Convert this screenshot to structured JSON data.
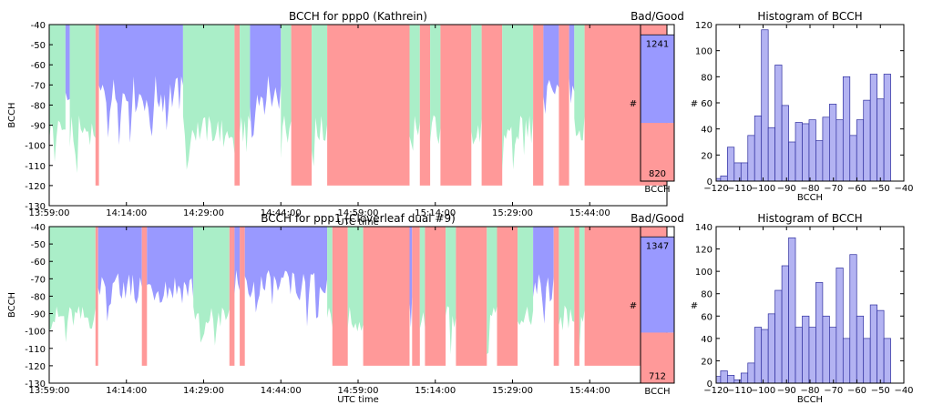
{
  "colors": {
    "bad": "#ff9999",
    "good": "#9999ff",
    "fill_green": "#aaeec8",
    "hist_fill": "#b3b3f2",
    "hist_edge": "#2f2f9f"
  },
  "chart_data": [
    {
      "type": "area",
      "title": "BCCH for ppp0 (Kathrein)",
      "xlabel": "UTC time",
      "ylabel": "BCCH",
      "ylim": [
        -130,
        -40
      ],
      "yticks": [
        -130,
        -120,
        -110,
        -100,
        -90,
        -80,
        -70,
        -60,
        -50,
        -40
      ],
      "xtick_labels": [
        "13:59:00",
        "14:14:00",
        "14:29:00",
        "14:44:00",
        "14:59:00",
        "15:14:00",
        "15:29:00",
        "15:44:00"
      ],
      "x_time_range": [
        "13:59:00",
        "15:59:00"
      ],
      "grid": false,
      "segments": [
        {
          "status": "green",
          "from": "13:59:00",
          "to": "14:02:10"
        },
        {
          "status": "good",
          "from": "14:02:10",
          "to": "14:03:00"
        },
        {
          "status": "green",
          "from": "14:03:00",
          "to": "14:08:00"
        },
        {
          "status": "bad",
          "from": "14:08:00",
          "to": "14:08:40"
        },
        {
          "status": "good",
          "from": "14:08:40",
          "to": "14:25:00"
        },
        {
          "status": "green",
          "from": "14:25:00",
          "to": "14:35:00"
        },
        {
          "status": "bad",
          "from": "14:35:00",
          "to": "14:36:00"
        },
        {
          "status": "green",
          "from": "14:36:00",
          "to": "14:38:00"
        },
        {
          "status": "good",
          "from": "14:38:00",
          "to": "14:44:00"
        },
        {
          "status": "green",
          "from": "14:44:00",
          "to": "14:46:00"
        },
        {
          "status": "bad",
          "from": "14:46:00",
          "to": "14:50:00"
        },
        {
          "status": "green",
          "from": "14:50:00",
          "to": "14:53:00"
        },
        {
          "status": "bad",
          "from": "14:53:00",
          "to": "15:09:00"
        },
        {
          "status": "green",
          "from": "15:09:00",
          "to": "15:11:00"
        },
        {
          "status": "bad",
          "from": "15:11:00",
          "to": "15:13:00"
        },
        {
          "status": "green",
          "from": "15:13:00",
          "to": "15:15:00"
        },
        {
          "status": "bad",
          "from": "15:15:00",
          "to": "15:21:00"
        },
        {
          "status": "green",
          "from": "15:21:00",
          "to": "15:23:00"
        },
        {
          "status": "bad",
          "from": "15:23:00",
          "to": "15:27:00"
        },
        {
          "status": "green",
          "from": "15:27:00",
          "to": "15:33:00"
        },
        {
          "status": "bad",
          "from": "15:33:00",
          "to": "15:35:00"
        },
        {
          "status": "good",
          "from": "15:35:00",
          "to": "15:38:00"
        },
        {
          "status": "bad",
          "from": "15:38:00",
          "to": "15:40:00"
        },
        {
          "status": "good",
          "from": "15:40:00",
          "to": "15:41:00"
        },
        {
          "status": "green",
          "from": "15:41:00",
          "to": "15:43:00"
        },
        {
          "status": "bad",
          "from": "15:43:00",
          "to": "15:59:00"
        }
      ]
    },
    {
      "type": "bar",
      "title": "Bad/Good",
      "xlabel": "BCCH",
      "ylabel": "#",
      "series": [
        {
          "name": "Bad",
          "value": 820
        },
        {
          "name": "Good",
          "value": 1241
        }
      ]
    },
    {
      "type": "histogram",
      "title": "Histogram of BCCH",
      "xlabel": "BCCH",
      "ylabel": "#",
      "xlim": [
        -120,
        -40
      ],
      "ylim": [
        0,
        120
      ],
      "xticks": [
        -120,
        -110,
        -100,
        -90,
        -80,
        -70,
        -60,
        -50,
        -40
      ],
      "yticks": [
        0,
        20,
        40,
        60,
        80,
        100,
        120
      ],
      "bin_start": -121,
      "bin_width": 2.9,
      "counts": [
        2,
        4,
        26,
        14,
        14,
        35,
        50,
        116,
        41,
        89,
        58,
        30,
        45,
        44,
        47,
        31,
        49,
        59,
        47,
        80,
        35,
        47,
        62,
        82,
        63,
        82
      ]
    },
    {
      "type": "area",
      "title": "BCCH for ppp1 (Cloverleaf dual #9)",
      "xlabel": "UTC time",
      "ylabel": "BCCH",
      "ylim": [
        -130,
        -40
      ],
      "yticks": [
        -130,
        -120,
        -110,
        -100,
        -90,
        -80,
        -70,
        -60,
        -50,
        -40
      ],
      "xtick_labels": [
        "13:59:00",
        "14:14:00",
        "14:29:00",
        "14:44:00",
        "14:59:00",
        "15:14:00",
        "15:29:00",
        "15:44:00"
      ],
      "x_time_range": [
        "13:59:00",
        "15:59:00"
      ],
      "grid": false,
      "segments": [
        {
          "status": "green",
          "from": "13:59:00",
          "to": "14:08:00"
        },
        {
          "status": "bad",
          "from": "14:08:00",
          "to": "14:08:30"
        },
        {
          "status": "good",
          "from": "14:08:30",
          "to": "14:17:00"
        },
        {
          "status": "bad",
          "from": "14:17:00",
          "to": "14:18:00"
        },
        {
          "status": "good",
          "from": "14:18:00",
          "to": "14:27:00"
        },
        {
          "status": "green",
          "from": "14:27:00",
          "to": "14:34:00"
        },
        {
          "status": "bad",
          "from": "14:34:00",
          "to": "14:35:00"
        },
        {
          "status": "good",
          "from": "14:35:00",
          "to": "14:36:00"
        },
        {
          "status": "bad",
          "from": "14:36:00",
          "to": "14:37:00"
        },
        {
          "status": "good",
          "from": "14:37:00",
          "to": "14:53:00"
        },
        {
          "status": "green",
          "from": "14:53:00",
          "to": "14:54:00"
        },
        {
          "status": "bad",
          "from": "14:54:00",
          "to": "14:57:00"
        },
        {
          "status": "green",
          "from": "14:57:00",
          "to": "15:00:00"
        },
        {
          "status": "bad",
          "from": "15:00:00",
          "to": "15:09:00"
        },
        {
          "status": "good",
          "from": "15:09:00",
          "to": "15:09:30"
        },
        {
          "status": "bad",
          "from": "15:09:30",
          "to": "15:11:00"
        },
        {
          "status": "green",
          "from": "15:11:00",
          "to": "15:12:00"
        },
        {
          "status": "bad",
          "from": "15:12:00",
          "to": "15:16:00"
        },
        {
          "status": "green",
          "from": "15:16:00",
          "to": "15:18:00"
        },
        {
          "status": "bad",
          "from": "15:18:00",
          "to": "15:24:00"
        },
        {
          "status": "green",
          "from": "15:24:00",
          "to": "15:26:00"
        },
        {
          "status": "bad",
          "from": "15:26:00",
          "to": "15:30:00"
        },
        {
          "status": "green",
          "from": "15:30:00",
          "to": "15:33:00"
        },
        {
          "status": "good",
          "from": "15:33:00",
          "to": "15:37:00"
        },
        {
          "status": "bad",
          "from": "15:37:00",
          "to": "15:38:00"
        },
        {
          "status": "green",
          "from": "15:38:00",
          "to": "15:41:00"
        },
        {
          "status": "bad",
          "from": "15:41:00",
          "to": "15:42:00"
        },
        {
          "status": "green",
          "from": "15:42:00",
          "to": "15:43:00"
        },
        {
          "status": "bad",
          "from": "15:43:00",
          "to": "15:59:00"
        }
      ]
    },
    {
      "type": "bar",
      "title": "Bad/Good",
      "xlabel": "BCCH",
      "ylabel": "#",
      "series": [
        {
          "name": "Bad",
          "value": 712
        },
        {
          "name": "Good",
          "value": 1347
        }
      ]
    },
    {
      "type": "histogram",
      "title": "Histogram of BCCH",
      "xlabel": "BCCH",
      "ylabel": "#",
      "xlim": [
        -120,
        -40
      ],
      "ylim": [
        0,
        140
      ],
      "xticks": [
        -120,
        -110,
        -100,
        -90,
        -80,
        -70,
        -60,
        -50,
        -40
      ],
      "yticks": [
        0,
        20,
        40,
        60,
        80,
        100,
        120,
        140
      ],
      "bin_start": -121,
      "bin_width": 2.9,
      "counts": [
        6,
        11,
        7,
        3,
        9,
        18,
        50,
        48,
        62,
        83,
        105,
        130,
        50,
        60,
        50,
        90,
        60,
        50,
        103,
        40,
        115,
        60,
        40,
        70,
        65,
        40
      ]
    }
  ]
}
